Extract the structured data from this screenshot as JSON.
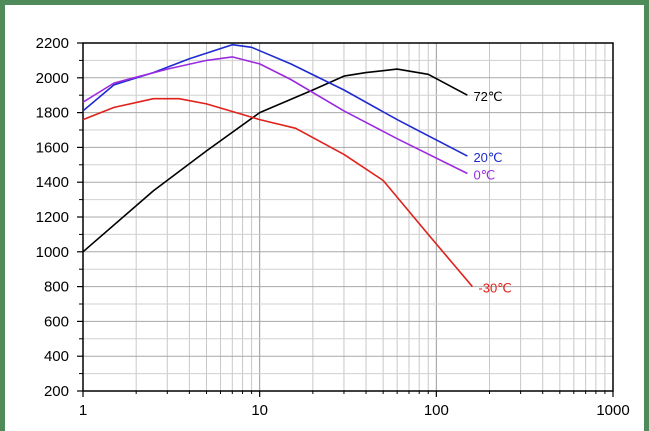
{
  "chart_data": {
    "type": "line",
    "title": "",
    "xlabel": "",
    "ylabel": "",
    "x_scale": "log",
    "xlim": [
      1,
      1000
    ],
    "ylim": [
      200,
      2200
    ],
    "grid": true,
    "x_tick_labels": [
      "1",
      "10",
      "100",
      "1000"
    ],
    "y_tick_labels": [
      "2200",
      "2000",
      "1800",
      "1600",
      "1400",
      "1200",
      "1000",
      "800",
      "600",
      "400",
      "200"
    ],
    "series": [
      {
        "name": "72℃",
        "color": "#000000",
        "x": [
          1,
          2.5,
          5,
          10,
          20,
          30,
          40,
          60,
          90,
          150
        ],
        "y": [
          1000,
          1350,
          1580,
          1800,
          1930,
          2010,
          2030,
          2050,
          2020,
          1900
        ]
      },
      {
        "name": "20℃",
        "color": "#1f2bd0",
        "x": [
          1,
          1.5,
          2.5,
          4,
          7,
          9,
          15,
          30,
          60,
          150
        ],
        "y": [
          1810,
          1960,
          2030,
          2110,
          2190,
          2175,
          2080,
          1930,
          1760,
          1550
        ]
      },
      {
        "name": "0℃",
        "color": "#9b2be0",
        "x": [
          1,
          1.5,
          3,
          5,
          7,
          10,
          15,
          30,
          60,
          150
        ],
        "y": [
          1860,
          1970,
          2050,
          2100,
          2120,
          2080,
          1990,
          1810,
          1650,
          1450
        ]
      },
      {
        "name": "-30℃",
        "color": "#e0201a",
        "x": [
          1,
          1.5,
          2.5,
          3.5,
          5,
          10,
          16,
          30,
          50,
          90,
          160
        ],
        "y": [
          1760,
          1830,
          1880,
          1880,
          1850,
          1760,
          1710,
          1560,
          1410,
          1100,
          800
        ]
      }
    ]
  }
}
